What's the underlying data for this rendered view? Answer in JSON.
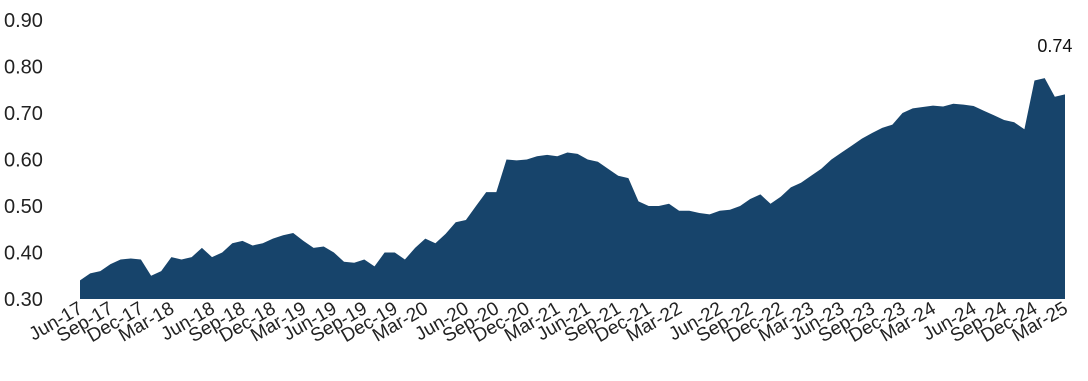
{
  "chart_data": {
    "type": "area",
    "title": "",
    "xlabel": "",
    "ylabel": "",
    "ylim": [
      0.3,
      0.9
    ],
    "yticks": [
      "0.90",
      "0.80",
      "0.70",
      "0.60",
      "0.50",
      "0.40",
      "0.30"
    ],
    "xticks": [
      "Jun-17",
      "Sep-17",
      "Dec-17",
      "Mar-18",
      "Jun-18",
      "Sep-18",
      "Dec-18",
      "Mar-19",
      "Jun-19",
      "Sep-19",
      "Dec-19",
      "Mar-20",
      "Jun-20",
      "Sep-20",
      "Dec-20",
      "Mar-21",
      "Jun-21",
      "Sep-21",
      "Dec-21",
      "Mar-22",
      "Jun-22",
      "Sep-22",
      "Dec-22",
      "Mar-23",
      "Jun-23",
      "Sep-23",
      "Dec-23",
      "Mar-24",
      "Jun-24",
      "Sep-24",
      "Dec-24",
      "Mar-25"
    ],
    "grid": false,
    "legend": "none",
    "area_color": "#17446b",
    "end_label": "0.74",
    "series": [
      {
        "values": [
          0.34,
          0.355,
          0.36,
          0.375,
          0.385,
          0.387,
          0.385,
          0.35,
          0.36,
          0.39,
          0.385,
          0.39,
          0.41,
          0.39,
          0.4,
          0.42,
          0.425,
          0.415,
          0.42,
          0.43,
          0.437,
          0.442,
          0.425,
          0.41,
          0.413,
          0.4,
          0.38,
          0.378,
          0.385,
          0.37,
          0.4,
          0.4,
          0.385,
          0.41,
          0.43,
          0.42,
          0.44,
          0.465,
          0.47,
          0.5,
          0.53,
          0.53,
          0.6,
          0.598,
          0.6,
          0.607,
          0.61,
          0.607,
          0.615,
          0.612,
          0.6,
          0.595,
          0.58,
          0.565,
          0.56,
          0.51,
          0.5,
          0.5,
          0.505,
          0.49,
          0.49,
          0.485,
          0.482,
          0.49,
          0.492,
          0.5,
          0.515,
          0.525,
          0.505,
          0.52,
          0.54,
          0.55,
          0.565,
          0.58,
          0.6,
          0.615,
          0.63,
          0.645,
          0.657,
          0.668,
          0.675,
          0.7,
          0.71,
          0.713,
          0.716,
          0.714,
          0.72,
          0.718,
          0.715,
          0.705,
          0.695,
          0.685,
          0.68,
          0.665,
          0.77,
          0.775,
          0.735,
          0.74
        ]
      }
    ]
  }
}
